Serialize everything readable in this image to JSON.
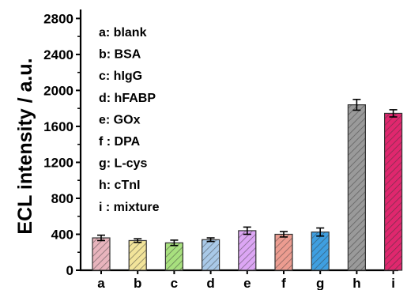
{
  "chart_data": {
    "type": "bar",
    "ylabel": "ECL intensity / a.u.",
    "xlabel": "",
    "ylim": [
      0,
      2900
    ],
    "yticks": [
      0,
      400,
      800,
      1200,
      1600,
      2000,
      2400,
      2800
    ],
    "categories": [
      "a",
      "b",
      "c",
      "d",
      "e",
      "f",
      "g",
      "h",
      "i"
    ],
    "values": [
      360,
      330,
      305,
      340,
      440,
      400,
      425,
      1840,
      1745
    ],
    "errors": [
      30,
      20,
      30,
      20,
      40,
      30,
      45,
      60,
      40
    ],
    "colors": [
      "#e8b4bd",
      "#f2e49a",
      "#a8e07e",
      "#a9c9e8",
      "#dca6f4",
      "#ec9c90",
      "#3f9fe0",
      "#9a9a9a",
      "#e0276e"
    ],
    "hatch": "diagonal",
    "grid": false,
    "legend": {
      "placement": "top-left",
      "entries": [
        "a: blank",
        "b: BSA",
        "c: hIgG",
        "d: hFABP",
        "e: GOx",
        "f : DPA",
        "g: L-cys",
        "h: cTnI",
        "i : mixture"
      ]
    }
  }
}
